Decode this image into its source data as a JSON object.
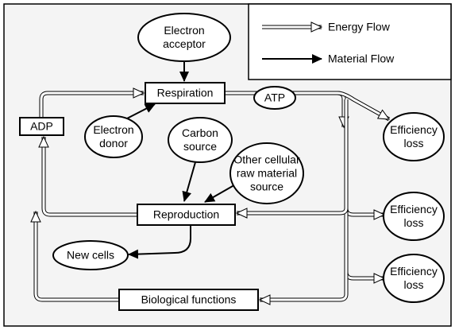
{
  "legend": {
    "energy": "Energy Flow",
    "material": "Material Flow"
  },
  "nodes": [
    {
      "label": [
        "Electron",
        "acceptor"
      ]
    },
    {
      "label": [
        "Respiration"
      ]
    },
    {
      "label": [
        "ATP"
      ]
    },
    {
      "label": [
        "ADP"
      ]
    },
    {
      "label": [
        "Electron",
        "donor"
      ]
    },
    {
      "label": [
        "Carbon",
        "source"
      ]
    },
    {
      "label": [
        "Other cellular",
        "raw material",
        "source"
      ]
    },
    {
      "label": [
        "Reproduction"
      ]
    },
    {
      "label": [
        "New cells"
      ]
    },
    {
      "label": [
        "Biological functions"
      ]
    },
    {
      "label": [
        "Efficiency",
        "loss"
      ]
    },
    {
      "label": [
        "Efficiency",
        "loss"
      ]
    },
    {
      "label": [
        "Efficiency",
        "loss"
      ]
    }
  ]
}
